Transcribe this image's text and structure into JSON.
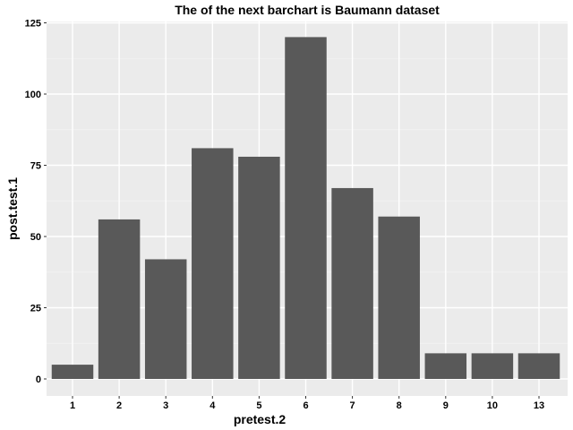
{
  "chart_data": {
    "type": "bar",
    "title": "The of the next barchart is Baumann dataset",
    "xlabel": "pretest.2",
    "ylabel": "post.test.1",
    "categories": [
      "1",
      "2",
      "3",
      "4",
      "5",
      "6",
      "7",
      "8",
      "9",
      "10",
      "13"
    ],
    "values": [
      5,
      56,
      42,
      81,
      78,
      120,
      67,
      57,
      9,
      9,
      9
    ],
    "ylim": [
      0,
      125
    ],
    "yticks": [
      0,
      25,
      50,
      75,
      100,
      125
    ],
    "ytick_labels": [
      "0",
      "25",
      "50",
      "75",
      "100",
      "125"
    ],
    "grid": true,
    "colors": {
      "bar": "#595959",
      "panel": "#ebebeb",
      "grid_major": "#ffffff",
      "grid_minor": "#f2f2f2"
    }
  }
}
